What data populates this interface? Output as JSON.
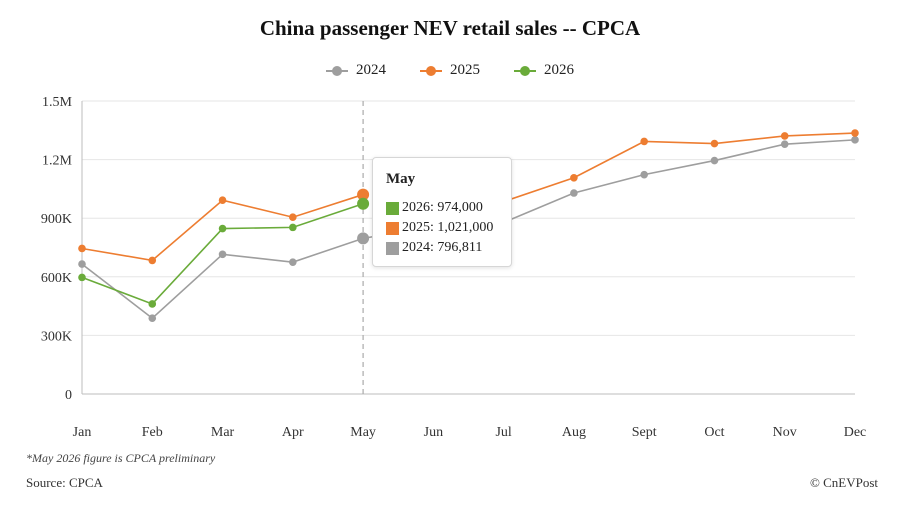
{
  "chart_data": {
    "type": "line",
    "title": "China passenger NEV retail sales -- CPCA",
    "categories": [
      "Jan",
      "Feb",
      "Mar",
      "Apr",
      "May",
      "Jun",
      "Jul",
      "Aug",
      "Sept",
      "Oct",
      "Nov",
      "Dec"
    ],
    "y_ticks": [
      "0",
      "300K",
      "600K",
      "900K",
      "1.2M",
      "1.5M"
    ],
    "ylim": [
      0,
      1500000
    ],
    "grid": true,
    "legend_position": "top-center",
    "series": [
      {
        "name": "2024",
        "color": "#9e9e9e",
        "values": [
          665000,
          388000,
          715000,
          675000,
          796811,
          856000,
          878000,
          1029000,
          1123000,
          1195000,
          1279000,
          1301000
        ]
      },
      {
        "name": "2025",
        "color": "#ed7d31",
        "values": [
          745000,
          684000,
          992000,
          905000,
          1021000,
          null,
          985000,
          1107000,
          1293000,
          1282000,
          1321000,
          1336000
        ]
      },
      {
        "name": "2026",
        "color": "#6aab3a",
        "values": [
          597000,
          461000,
          847000,
          853000,
          974000,
          null,
          null,
          null,
          null,
          null,
          null,
          null
        ]
      }
    ],
    "highlight_index": 4
  },
  "tooltip": {
    "title": "May",
    "rows": [
      "2026: 974,000",
      "2025: 1,021,000",
      "2024: 796,811"
    ],
    "colors": [
      "#6aab3a",
      "#ed7d31",
      "#9e9e9e"
    ]
  },
  "footnote": "*May 2026 figure is CPCA preliminary",
  "source": "Source: CPCA",
  "credit": "© CnEVPost"
}
